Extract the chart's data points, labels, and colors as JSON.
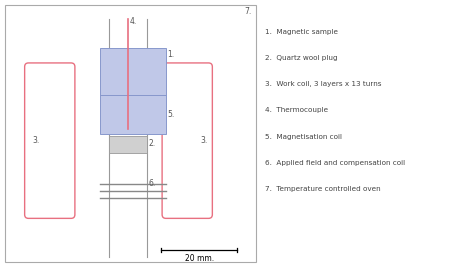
{
  "bg_color": "#ffffff",
  "border_color": "#aaaaaa",
  "pink": "#e87080",
  "blue_fill": "#c0c8e8",
  "blue_border": "#8898cc",
  "gray_fill": "#d0d0d0",
  "tube_fill": "#f0f0f0",
  "tube_border": "#999999",
  "legend_items": [
    "1.  Magnetic sample",
    "2.  Quartz wool plug",
    "3.  Work coil, 3 layers x 13 turns",
    "4.  Thermocouple",
    "5.  Magnetisation coil",
    "6.  Applied field and compensation coil",
    "7.  Temperature controlled oven"
  ],
  "scale_label": "20 mm.",
  "label7": "7.",
  "label3_left": "3.",
  "label3_right": "3.",
  "label1": "1.",
  "label2": "2.",
  "label4": "4.",
  "label5": "5.",
  "label6": "6."
}
